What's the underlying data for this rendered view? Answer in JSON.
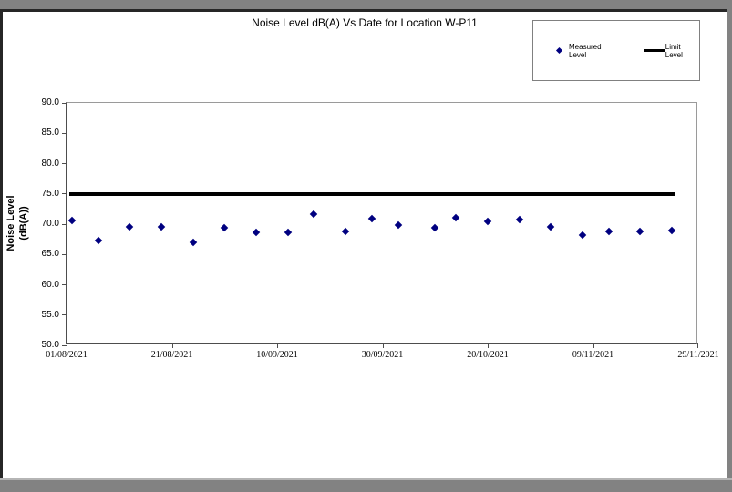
{
  "chart_data": {
    "type": "scatter",
    "title": "Noise Level dB(A) Vs Date for Location W-P11",
    "ylabel_lines": [
      "Noise Level",
      "(dB(A))"
    ],
    "ylim": [
      50.0,
      90.0
    ],
    "ytick_step": 5.0,
    "ytick_labels": [
      "90.0",
      "85.0",
      "80.0",
      "75.0",
      "70.0",
      "65.0",
      "60.0",
      "55.0",
      "50.0"
    ],
    "xtick_labels": [
      "01/08/2021",
      "21/08/2021",
      "10/09/2021",
      "30/09/2021",
      "20/10/2021",
      "09/11/2021",
      "29/11/2021"
    ],
    "grid": "off",
    "legend_position": "top-right",
    "series": [
      {
        "name": "Measured Level",
        "type": "scatter",
        "marker": "diamond",
        "color": "#000080",
        "points": [
          {
            "date": "02/08/2021",
            "value": 70.6
          },
          {
            "date": "07/08/2021",
            "value": 67.3
          },
          {
            "date": "13/08/2021",
            "value": 69.6
          },
          {
            "date": "19/08/2021",
            "value": 69.6
          },
          {
            "date": "25/08/2021",
            "value": 67.0
          },
          {
            "date": "31/08/2021",
            "value": 69.4
          },
          {
            "date": "06/09/2021",
            "value": 68.7
          },
          {
            "date": "12/09/2021",
            "value": 68.6
          },
          {
            "date": "17/09/2021",
            "value": 71.7
          },
          {
            "date": "23/09/2021",
            "value": 68.8
          },
          {
            "date": "28/09/2021",
            "value": 70.9
          },
          {
            "date": "03/10/2021",
            "value": 69.9
          },
          {
            "date": "10/10/2021",
            "value": 69.4
          },
          {
            "date": "14/10/2021",
            "value": 71.0
          },
          {
            "date": "20/10/2021",
            "value": 70.5
          },
          {
            "date": "26/10/2021",
            "value": 70.7
          },
          {
            "date": "01/11/2021",
            "value": 69.5
          },
          {
            "date": "07/11/2021",
            "value": 68.2
          },
          {
            "date": "12/11/2021",
            "value": 68.8
          },
          {
            "date": "18/11/2021",
            "value": 68.8
          },
          {
            "date": "24/11/2021",
            "value": 69.0
          }
        ]
      },
      {
        "name": "Limit Level",
        "type": "line",
        "color": "#000000",
        "value": 75.0,
        "span_days": [
          0.5,
          115.5
        ]
      }
    ]
  }
}
